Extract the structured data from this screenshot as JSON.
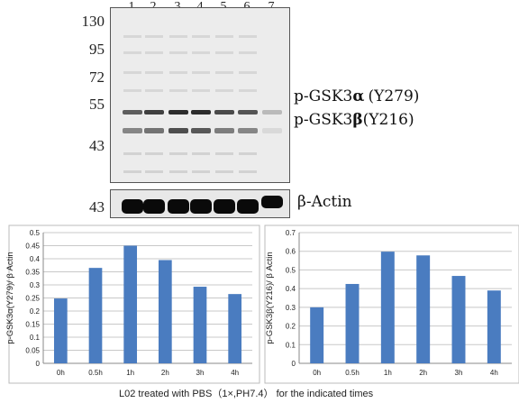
{
  "blot": {
    "lanes": [
      "1",
      "2",
      "3",
      "4",
      "5",
      "6",
      "7"
    ],
    "markers": [
      "130",
      "95",
      "72",
      "55",
      "43"
    ],
    "actin_marker": "43",
    "label_alpha_prefix": "p-GSK3",
    "label_alpha_greek": "α",
    "label_alpha_site": "(Y279)",
    "label_beta_prefix": "p-GSK3",
    "label_beta_greek": "β",
    "label_beta_site": "(Y216)",
    "label_actin": "β-Actin"
  },
  "caption": "L02 treated with PBS（1×,PH7.4） for the indicated times",
  "chart_data": [
    {
      "type": "bar",
      "categories": [
        "0h",
        "0.5h",
        "1h",
        "2h",
        "3h",
        "4h"
      ],
      "values": [
        0.248,
        0.365,
        0.45,
        0.395,
        0.293,
        0.265
      ],
      "ylabel": "p-GSK3α(Y279)/ β Actin",
      "ylim": [
        0,
        0.5
      ],
      "yticks": [
        "0",
        "0.05",
        "0.1",
        "0.15",
        "0.2",
        "0.25",
        "0.3",
        "0.35",
        "0.4",
        "0.45",
        "0.5"
      ],
      "grid": true,
      "color": "#4a7cc0"
    },
    {
      "type": "bar",
      "categories": [
        "0h",
        "0.5h",
        "1h",
        "2h",
        "3h",
        "4h"
      ],
      "values": [
        0.3,
        0.425,
        0.598,
        0.578,
        0.468,
        0.39
      ],
      "ylabel": "p-GSK3β(Y216)/ β Actin",
      "ylim": [
        0,
        0.7
      ],
      "yticks": [
        "0",
        "0.1",
        "0.2",
        "0.3",
        "0.4",
        "0.5",
        "0.6",
        "0.7"
      ],
      "grid": true,
      "color": "#4a7cc0"
    }
  ]
}
